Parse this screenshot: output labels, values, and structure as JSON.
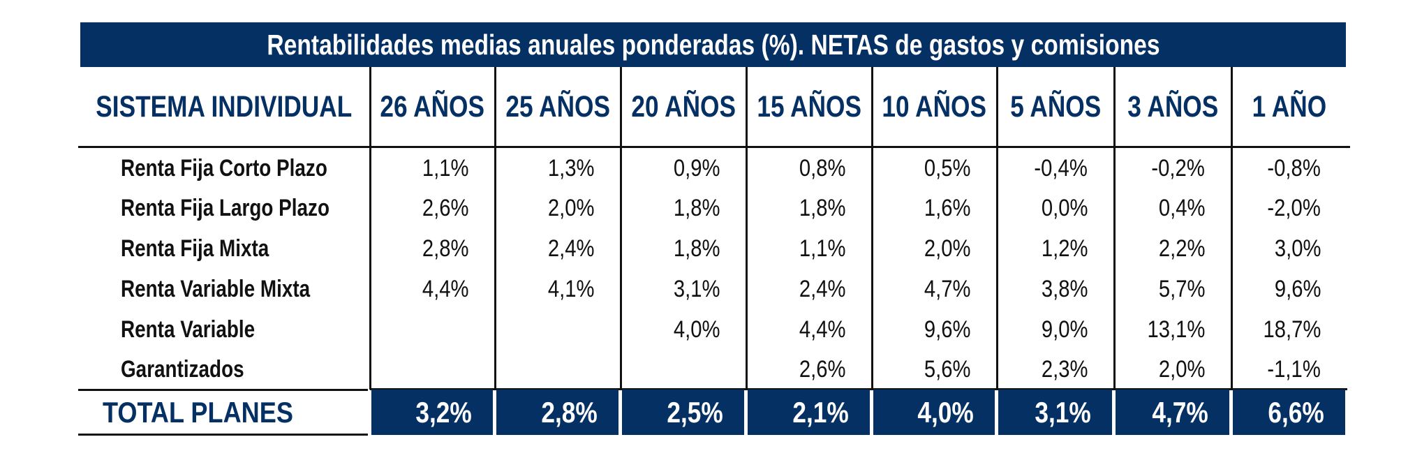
{
  "title": "Rentabilidades medias anuales ponderadas (%). NETAS de gastos y comisiones",
  "header": {
    "row_label": "SISTEMA INDIVIDUAL",
    "columns": [
      "26 AÑOS",
      "25 AÑOS",
      "20 AÑOS",
      "15 AÑOS",
      "10 AÑOS",
      "5 AÑOS",
      "3 AÑOS",
      "1 AÑO"
    ]
  },
  "rows": [
    {
      "label": "Renta Fija Corto Plazo",
      "values": [
        "1,1%",
        "1,3%",
        "0,9%",
        "0,8%",
        "0,5%",
        "-0,4%",
        "-0,2%",
        "-0,8%"
      ]
    },
    {
      "label": "Renta Fija Largo Plazo",
      "values": [
        "2,6%",
        "2,0%",
        "1,8%",
        "1,8%",
        "1,6%",
        "0,0%",
        "0,4%",
        "-2,0%"
      ]
    },
    {
      "label": "Renta Fija Mixta",
      "values": [
        "2,8%",
        "2,4%",
        "1,8%",
        "1,1%",
        "2,0%",
        "1,2%",
        "2,2%",
        "3,0%"
      ]
    },
    {
      "label": "Renta Variable Mixta",
      "values": [
        "4,4%",
        "4,1%",
        "3,1%",
        "2,4%",
        "4,7%",
        "3,8%",
        "5,7%",
        "9,6%"
      ]
    },
    {
      "label": "Renta Variable",
      "values": [
        "",
        "",
        "4,0%",
        "4,4%",
        "9,6%",
        "9,0%",
        "13,1%",
        "18,7%"
      ]
    },
    {
      "label": "Garantizados",
      "values": [
        "",
        "",
        "",
        "2,6%",
        "5,6%",
        "2,3%",
        "2,0%",
        "-1,1%"
      ]
    }
  ],
  "total": {
    "label": "TOTAL PLANES",
    "values": [
      "3,2%",
      "2,8%",
      "2,5%",
      "2,1%",
      "4,0%",
      "3,1%",
      "4,7%",
      "6,6%"
    ]
  },
  "colors": {
    "navy": "#053064",
    "text": "#111111",
    "white": "#ffffff"
  }
}
